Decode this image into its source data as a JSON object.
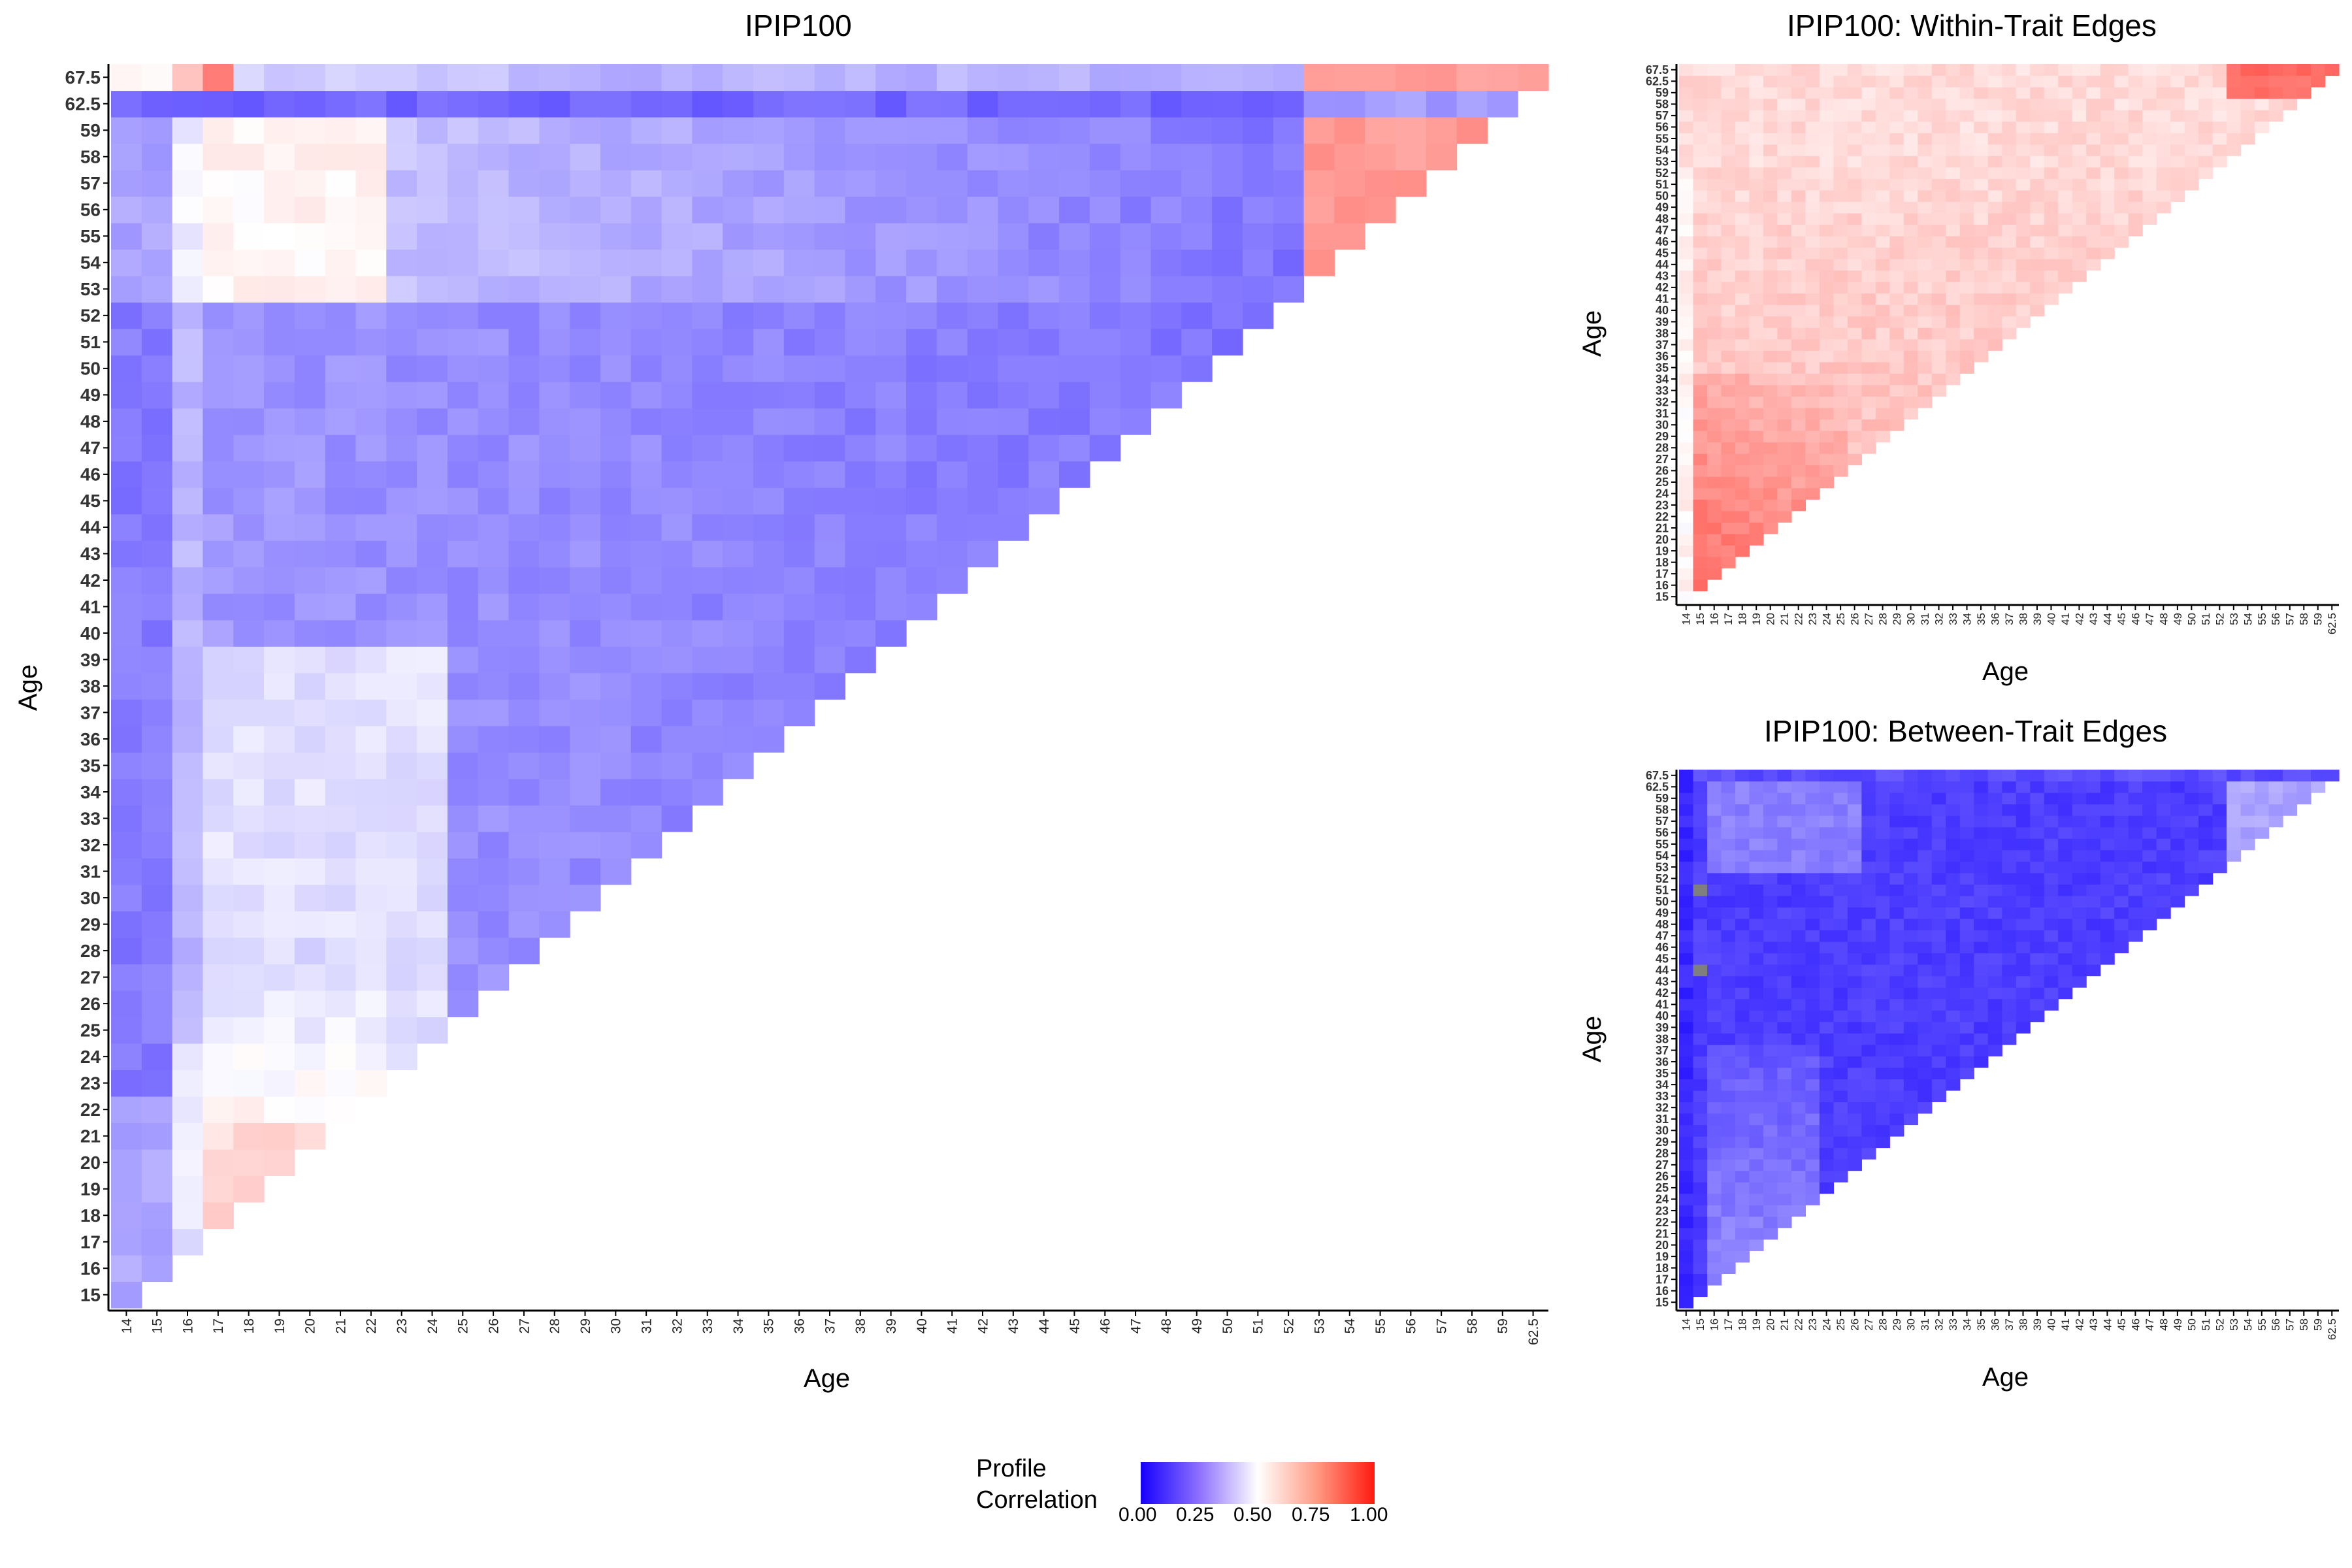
{
  "chart_data": [
    {
      "type": "heatmap",
      "title": "IPIP100",
      "xlabel": "Age",
      "ylabel": "Age",
      "x_categories": [
        "14",
        "15",
        "16",
        "17",
        "18",
        "19",
        "20",
        "21",
        "22",
        "23",
        "24",
        "25",
        "26",
        "27",
        "28",
        "29",
        "30",
        "31",
        "32",
        "33",
        "34",
        "35",
        "36",
        "37",
        "38",
        "39",
        "40",
        "41",
        "42",
        "43",
        "44",
        "45",
        "46",
        "47",
        "48",
        "49",
        "50",
        "51",
        "52",
        "53",
        "54",
        "55",
        "56",
        "57",
        "58",
        "59",
        "62.5"
      ],
      "y_categories": [
        "15",
        "16",
        "17",
        "18",
        "19",
        "20",
        "21",
        "22",
        "23",
        "24",
        "25",
        "26",
        "27",
        "28",
        "29",
        "30",
        "31",
        "32",
        "33",
        "34",
        "35",
        "36",
        "37",
        "38",
        "39",
        "40",
        "41",
        "42",
        "43",
        "44",
        "45",
        "46",
        "47",
        "48",
        "49",
        "50",
        "51",
        "52",
        "53",
        "54",
        "55",
        "56",
        "57",
        "58",
        "59",
        "62.5",
        "67.5"
      ],
      "value_range": [
        0,
        1
      ],
      "layout": "lower-triangle",
      "color_pattern": "mostly 0.25-0.45 (purple); ages 53-59 rows lighter (~0.45); x ages 17-22 with y 17-28 near 0.55-0.70; columns 53-59 vs rows 53+ ~0.72"
    },
    {
      "type": "heatmap",
      "title": "IPIP100: Within-Trait Edges",
      "xlabel": "Age",
      "ylabel": "Age",
      "x_categories": [
        "14",
        "15",
        "16",
        "17",
        "18",
        "19",
        "20",
        "21",
        "22",
        "23",
        "24",
        "25",
        "26",
        "27",
        "28",
        "29",
        "30",
        "31",
        "32",
        "33",
        "34",
        "35",
        "36",
        "37",
        "38",
        "39",
        "40",
        "41",
        "42",
        "43",
        "44",
        "45",
        "46",
        "47",
        "48",
        "49",
        "50",
        "51",
        "52",
        "53",
        "54",
        "55",
        "56",
        "57",
        "58",
        "59",
        "62.5"
      ],
      "y_categories": [
        "15",
        "16",
        "17",
        "18",
        "19",
        "20",
        "21",
        "22",
        "23",
        "24",
        "25",
        "26",
        "27",
        "28",
        "29",
        "30",
        "31",
        "32",
        "33",
        "34",
        "35",
        "36",
        "37",
        "38",
        "39",
        "40",
        "41",
        "42",
        "43",
        "44",
        "45",
        "46",
        "47",
        "48",
        "49",
        "50",
        "51",
        "52",
        "53",
        "54",
        "55",
        "56",
        "57",
        "58",
        "59",
        "62.5",
        "67.5"
      ],
      "value_range": [
        0,
        1
      ],
      "layout": "lower-triangle",
      "color_pattern": "mostly 0.55-0.75 (red); strongest ~0.85 at young ages; column 14 near 0.5"
    },
    {
      "type": "heatmap",
      "title": "IPIP100: Between-Trait Edges",
      "xlabel": "Age",
      "ylabel": "Age",
      "x_categories": [
        "14",
        "15",
        "16",
        "17",
        "18",
        "19",
        "20",
        "21",
        "22",
        "23",
        "24",
        "25",
        "26",
        "27",
        "28",
        "29",
        "30",
        "31",
        "32",
        "33",
        "34",
        "35",
        "36",
        "37",
        "38",
        "39",
        "40",
        "41",
        "42",
        "43",
        "44",
        "45",
        "46",
        "47",
        "48",
        "49",
        "50",
        "51",
        "52",
        "53",
        "54",
        "55",
        "56",
        "57",
        "58",
        "59",
        "62.5"
      ],
      "y_categories": [
        "15",
        "16",
        "17",
        "18",
        "19",
        "20",
        "21",
        "22",
        "23",
        "24",
        "25",
        "26",
        "27",
        "28",
        "29",
        "30",
        "31",
        "32",
        "33",
        "34",
        "35",
        "36",
        "37",
        "38",
        "39",
        "40",
        "41",
        "42",
        "43",
        "44",
        "45",
        "46",
        "47",
        "48",
        "49",
        "50",
        "51",
        "52",
        "53",
        "54",
        "55",
        "56",
        "57",
        "58",
        "59",
        "62.5",
        "67.5"
      ],
      "value_range": [
        0,
        1
      ],
      "layout": "lower-triangle",
      "missing_cells": [
        [
          "15",
          "44"
        ],
        [
          "15",
          "51"
        ]
      ],
      "color_pattern": "mostly 0.05-0.20 (blue); younger x columns 16-22 ~0.3; columns 53+ ~0.3"
    }
  ],
  "legend": {
    "title_line1": "Profile",
    "title_line2": "Correlation",
    "ticks": [
      "0.00",
      "0.25",
      "0.50",
      "0.75",
      "1.00"
    ],
    "colors": {
      "low": "#1500ff",
      "mid": "#ffffff",
      "high": "#ff1a0e",
      "missing": "#7f7f7f"
    }
  }
}
